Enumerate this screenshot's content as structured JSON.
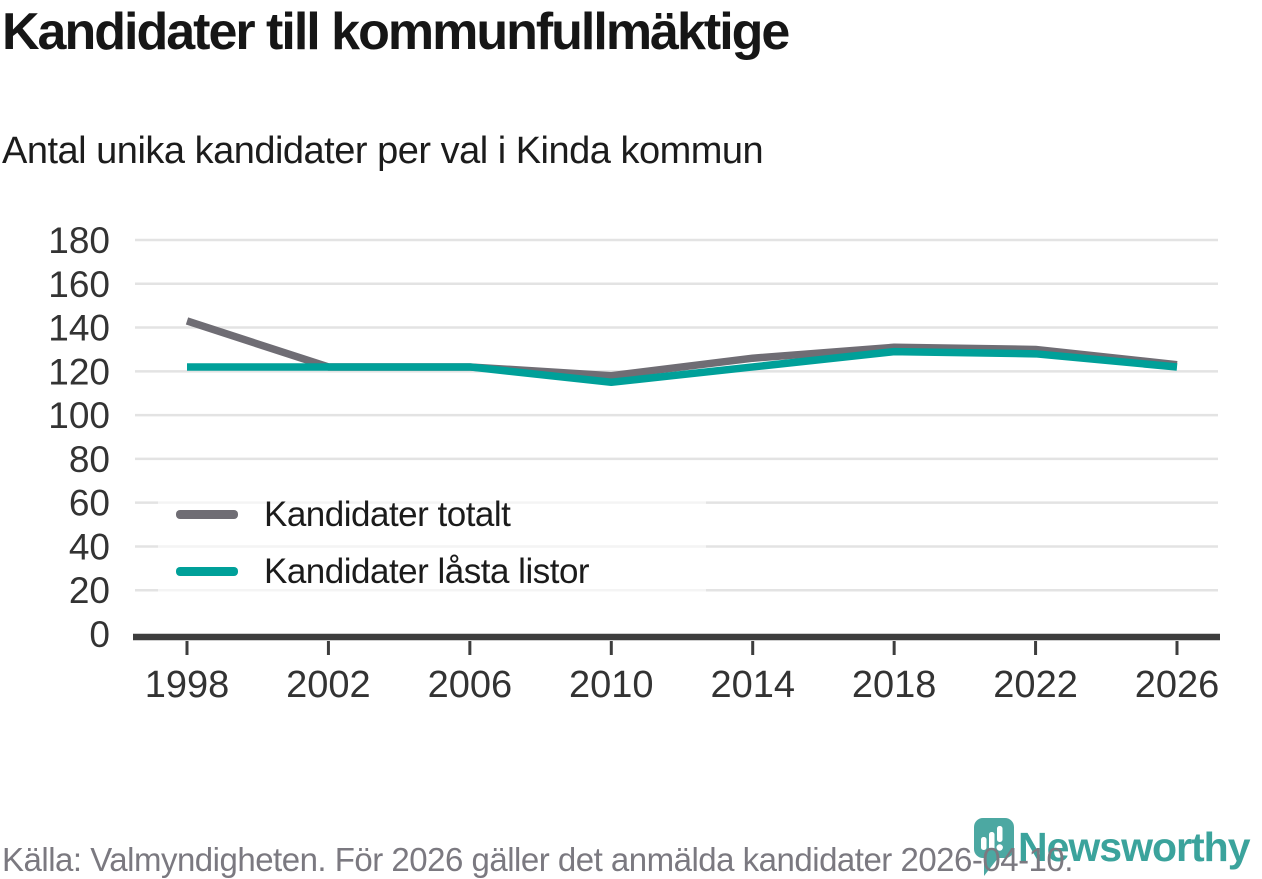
{
  "page": {
    "title": "Kandidater till kommunfullmäktige",
    "subtitle": "Antal unika kandidater per val i Kinda kommun"
  },
  "chart_data": {
    "type": "line",
    "title": "Kandidater till kommunfullmäktige",
    "xlabel": "",
    "ylabel": "",
    "x": [
      1998,
      2002,
      2006,
      2010,
      2014,
      2018,
      2022,
      2026
    ],
    "x_tick_labels": [
      "1998",
      "2002",
      "2006",
      "2010",
      "2014",
      "2018",
      "2022",
      "2026"
    ],
    "series": [
      {
        "name": "Kandidater totalt",
        "color": "#6F6D74",
        "values": [
          143,
          122,
          122,
          118,
          126,
          131,
          130,
          123
        ]
      },
      {
        "name": "Kandidater låsta listor",
        "color": "#00A099",
        "values": [
          122,
          122,
          122,
          115,
          122,
          129,
          128,
          122
        ]
      }
    ],
    "ylim": [
      0,
      180
    ],
    "ytick_step": 20,
    "y_tick_labels": [
      "0",
      "20",
      "40",
      "60",
      "80",
      "100",
      "120",
      "140",
      "160",
      "180"
    ],
    "grid": true,
    "legend_position": "inside-top-left"
  },
  "footer": {
    "source": "Källa: Valmyndigheten. För 2026 gäller det anmälda kandidater 2026-04-10.",
    "brand": "Newsworthy"
  },
  "colors": {
    "grid": "#E3E3E3",
    "axis": "#3D3D3D",
    "tick_label": "#333333",
    "title_text": "#161616",
    "source_text": "#7B7980",
    "brand_teal": "#3BA39C",
    "logo_bubble": "#4CA8A2"
  }
}
